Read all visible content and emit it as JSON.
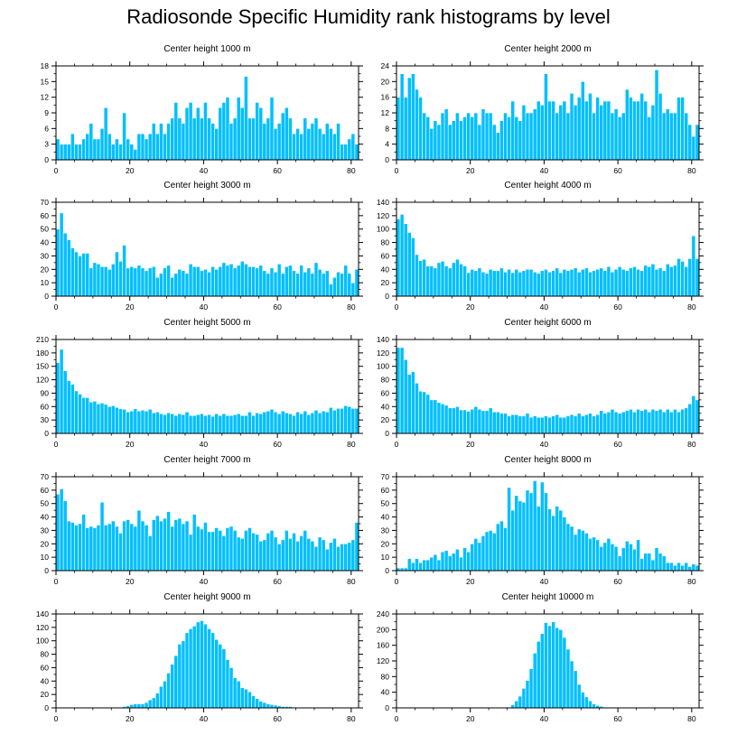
{
  "figure_title": "Radiosonde Specific Humidity rank histograms by level",
  "colors": {
    "bar": "#00BFFF",
    "bar_edge": "#ffffff",
    "axis": "#000000"
  },
  "chart_data": [
    {
      "type": "bar",
      "title": "Center height 1000 m",
      "x": "ranks 0-81",
      "xticks": [
        0,
        20,
        40,
        60,
        80
      ],
      "xlim": [
        0,
        82
      ],
      "ylim": [
        0,
        18
      ],
      "yticks": [
        0,
        3,
        6,
        9,
        12,
        15,
        18
      ],
      "values": [
        4,
        3,
        3,
        3,
        5,
        3,
        3,
        4,
        5,
        7,
        4,
        4,
        6,
        10,
        5,
        3,
        4,
        3,
        9,
        4,
        3,
        2,
        5,
        5,
        4,
        5,
        7,
        5,
        7,
        5,
        7,
        8,
        11,
        8,
        7,
        10,
        11,
        8,
        10,
        8,
        11,
        8,
        7,
        6,
        10,
        11,
        12,
        7,
        8,
        12,
        10,
        16,
        8,
        8,
        11,
        10,
        7,
        8,
        12,
        6,
        7,
        9,
        10,
        8,
        5,
        6,
        5,
        8,
        6,
        7,
        8,
        6,
        5,
        7,
        6,
        5,
        7,
        3,
        3,
        4,
        5,
        3
      ]
    },
    {
      "type": "bar",
      "title": "Center height 2000 m",
      "x": "ranks 0-81",
      "xticks": [
        0,
        20,
        40,
        60,
        80
      ],
      "xlim": [
        0,
        82
      ],
      "ylim": [
        0,
        24
      ],
      "yticks": [
        0,
        4,
        8,
        12,
        16,
        20,
        24
      ],
      "values": [
        16,
        22,
        16,
        21,
        22,
        18,
        16,
        12,
        11,
        8,
        10,
        9,
        12,
        13,
        9,
        10,
        12,
        10,
        11,
        12,
        11,
        12,
        9,
        13,
        12,
        12,
        9,
        7,
        10,
        12,
        11,
        15,
        11,
        10,
        14,
        12,
        12,
        13,
        15,
        14,
        22,
        15,
        15,
        12,
        14,
        15,
        12,
        17,
        14,
        16,
        20,
        15,
        17,
        12,
        16,
        14,
        15,
        15,
        12,
        13,
        11,
        12,
        18,
        16,
        15,
        15,
        17,
        15,
        11,
        14,
        23,
        17,
        12,
        13,
        12,
        12,
        16,
        16,
        12,
        9,
        6,
        9
      ]
    },
    {
      "type": "bar",
      "title": "Center height 3000 m",
      "x": "ranks 0-81",
      "xticks": [
        0,
        20,
        40,
        60,
        80
      ],
      "xlim": [
        0,
        82
      ],
      "ylim": [
        0,
        70
      ],
      "yticks": [
        0,
        10,
        20,
        30,
        40,
        50,
        60,
        70
      ],
      "values": [
        50,
        62,
        47,
        42,
        36,
        33,
        30,
        32,
        32,
        21,
        25,
        24,
        22,
        22,
        20,
        24,
        33,
        26,
        38,
        21,
        22,
        21,
        23,
        21,
        19,
        21,
        22,
        14,
        17,
        21,
        23,
        14,
        17,
        20,
        19,
        17,
        24,
        22,
        22,
        19,
        20,
        18,
        22,
        20,
        22,
        25,
        23,
        24,
        21,
        23,
        26,
        24,
        22,
        22,
        21,
        23,
        19,
        17,
        21,
        18,
        24,
        17,
        22,
        23,
        19,
        17,
        23,
        18,
        21,
        17,
        25,
        20,
        17,
        19,
        9,
        14,
        18,
        17,
        23,
        17,
        10,
        20
      ]
    },
    {
      "type": "bar",
      "title": "Center height 4000 m",
      "x": "ranks 0-81",
      "xticks": [
        0,
        20,
        40,
        60,
        80
      ],
      "xlim": [
        0,
        82
      ],
      "ylim": [
        0,
        140
      ],
      "yticks": [
        0,
        20,
        40,
        60,
        80,
        100,
        120,
        140
      ],
      "values": [
        115,
        122,
        108,
        95,
        87,
        62,
        53,
        55,
        45,
        45,
        42,
        50,
        52,
        45,
        42,
        50,
        55,
        48,
        45,
        35,
        40,
        38,
        42,
        36,
        34,
        40,
        38,
        38,
        42,
        36,
        40,
        35,
        40,
        36,
        38,
        40,
        40,
        36,
        34,
        38,
        40,
        36,
        38,
        42,
        35,
        40,
        38,
        40,
        42,
        36,
        40,
        42,
        36,
        38,
        40,
        42,
        38,
        44,
        36,
        40,
        44,
        40,
        38,
        42,
        44,
        40,
        38,
        46,
        44,
        48,
        40,
        42,
        38,
        48,
        44,
        46,
        56,
        52,
        44,
        56,
        90,
        56
      ]
    },
    {
      "type": "bar",
      "title": "Center height 5000 m",
      "x": "ranks 0-81",
      "xticks": [
        0,
        20,
        40,
        60,
        80
      ],
      "xlim": [
        0,
        82
      ],
      "ylim": [
        0,
        210
      ],
      "yticks": [
        0,
        30,
        60,
        90,
        120,
        150,
        180,
        210
      ],
      "values": [
        158,
        188,
        140,
        118,
        110,
        95,
        88,
        80,
        80,
        70,
        72,
        66,
        68,
        65,
        60,
        62,
        58,
        55,
        54,
        48,
        50,
        55,
        50,
        52,
        50,
        54,
        46,
        48,
        44,
        42,
        46,
        44,
        40,
        44,
        42,
        48,
        40,
        40,
        42,
        44,
        40,
        42,
        38,
        44,
        40,
        44,
        40,
        40,
        42,
        44,
        40,
        40,
        48,
        40,
        46,
        44,
        48,
        50,
        54,
        48,
        44,
        50,
        46,
        44,
        40,
        48,
        44,
        50,
        42,
        46,
        52,
        46,
        50,
        48,
        58,
        52,
        56,
        56,
        62,
        60,
        56,
        56
      ]
    },
    {
      "type": "bar",
      "title": "Center height 6000 m",
      "x": "ranks 0-81",
      "xticks": [
        0,
        20,
        40,
        60,
        80
      ],
      "xlim": [
        0,
        82
      ],
      "ylim": [
        0,
        140
      ],
      "yticks": [
        0,
        20,
        40,
        60,
        80,
        100,
        120,
        140
      ],
      "values": [
        128,
        128,
        110,
        88,
        92,
        75,
        63,
        62,
        58,
        50,
        50,
        46,
        44,
        42,
        38,
        38,
        40,
        35,
        35,
        33,
        36,
        40,
        36,
        34,
        34,
        38,
        32,
        32,
        30,
        30,
        26,
        28,
        28,
        26,
        26,
        30,
        24,
        26,
        24,
        24,
        26,
        24,
        26,
        28,
        24,
        24,
        26,
        28,
        26,
        30,
        26,
        28,
        30,
        26,
        28,
        34,
        30,
        32,
        36,
        32,
        30,
        32,
        34,
        36,
        32,
        36,
        34,
        36,
        32,
        36,
        34,
        36,
        32,
        36,
        32,
        36,
        32,
        36,
        38,
        44,
        56,
        50
      ]
    },
    {
      "type": "bar",
      "title": "Center height 7000 m",
      "x": "ranks 0-81",
      "xticks": [
        0,
        20,
        40,
        60,
        80
      ],
      "xlim": [
        0,
        82
      ],
      "ylim": [
        0,
        70
      ],
      "yticks": [
        0,
        10,
        20,
        30,
        40,
        50,
        60,
        70
      ],
      "values": [
        57,
        61,
        52,
        37,
        36,
        34,
        35,
        42,
        32,
        33,
        32,
        34,
        51,
        34,
        35,
        37,
        33,
        28,
        37,
        38,
        35,
        33,
        45,
        37,
        34,
        26,
        38,
        41,
        37,
        39,
        44,
        33,
        38,
        39,
        35,
        37,
        27,
        42,
        33,
        31,
        36,
        29,
        29,
        32,
        30,
        26,
        32,
        33,
        30,
        25,
        24,
        30,
        32,
        28,
        27,
        22,
        23,
        28,
        30,
        25,
        20,
        23,
        30,
        24,
        28,
        22,
        26,
        30,
        24,
        22,
        18,
        25,
        23,
        16,
        21,
        24,
        18,
        20,
        20,
        21,
        23,
        36
      ]
    },
    {
      "type": "bar",
      "title": "Center height 8000 m",
      "x": "ranks 0-81",
      "xticks": [
        0,
        20,
        40,
        60,
        80
      ],
      "xlim": [
        0,
        82
      ],
      "ylim": [
        0,
        70
      ],
      "yticks": [
        0,
        10,
        20,
        30,
        40,
        50,
        60,
        70
      ],
      "values": [
        2,
        2,
        2,
        9,
        6,
        9,
        6,
        8,
        8,
        10,
        12,
        8,
        14,
        15,
        11,
        13,
        16,
        10,
        17,
        14,
        20,
        24,
        21,
        26,
        29,
        30,
        28,
        35,
        37,
        32,
        62,
        45,
        56,
        52,
        51,
        60,
        58,
        67,
        48,
        66,
        58,
        46,
        41,
        48,
        45,
        40,
        35,
        33,
        27,
        31,
        30,
        28,
        24,
        25,
        23,
        18,
        21,
        24,
        20,
        18,
        11,
        17,
        22,
        20,
        16,
        23,
        9,
        13,
        13,
        8,
        17,
        13,
        11,
        6,
        6,
        4,
        6,
        4,
        6,
        3,
        5,
        4
      ]
    },
    {
      "type": "bar",
      "title": "Center height 9000 m",
      "x": "ranks 0-81",
      "xticks": [
        0,
        20,
        40,
        60,
        80
      ],
      "xlim": [
        0,
        82
      ],
      "ylim": [
        0,
        140
      ],
      "yticks": [
        0,
        20,
        40,
        60,
        80,
        100,
        120,
        140
      ],
      "values": [
        0,
        0,
        0,
        0,
        0,
        0,
        0,
        0,
        0,
        0,
        0,
        0,
        0,
        0,
        0,
        0,
        0,
        1,
        2,
        3,
        5,
        6,
        6,
        6,
        8,
        12,
        15,
        22,
        32,
        40,
        52,
        65,
        78,
        95,
        100,
        112,
        118,
        122,
        128,
        130,
        125,
        118,
        112,
        102,
        95,
        88,
        72,
        60,
        45,
        40,
        30,
        28,
        24,
        18,
        14,
        10,
        8,
        6,
        5,
        4,
        3,
        2,
        2,
        2,
        1,
        1,
        0,
        0,
        0,
        0,
        0,
        0,
        0,
        0,
        0,
        0,
        0,
        0,
        0,
        0,
        0,
        0
      ]
    },
    {
      "type": "bar",
      "title": "Center height 10000 m",
      "x": "ranks 0-81",
      "xticks": [
        0,
        20,
        40,
        60,
        80
      ],
      "xlim": [
        0,
        82
      ],
      "ylim": [
        0,
        240
      ],
      "yticks": [
        0,
        40,
        80,
        120,
        160,
        200,
        240
      ],
      "values": [
        0,
        0,
        0,
        0,
        0,
        0,
        0,
        0,
        0,
        0,
        0,
        0,
        0,
        0,
        0,
        0,
        0,
        0,
        0,
        0,
        0,
        0,
        0,
        0,
        0,
        0,
        0,
        0,
        0,
        0,
        2,
        8,
        18,
        30,
        50,
        70,
        100,
        140,
        170,
        190,
        218,
        210,
        220,
        205,
        200,
        180,
        150,
        120,
        95,
        60,
        40,
        28,
        18,
        10,
        6,
        4,
        2,
        1,
        0,
        0,
        0,
        0,
        0,
        0,
        0,
        0,
        0,
        0,
        0,
        0,
        0,
        0,
        0,
        0,
        0,
        0,
        0,
        0,
        0,
        0,
        0,
        0
      ]
    }
  ]
}
